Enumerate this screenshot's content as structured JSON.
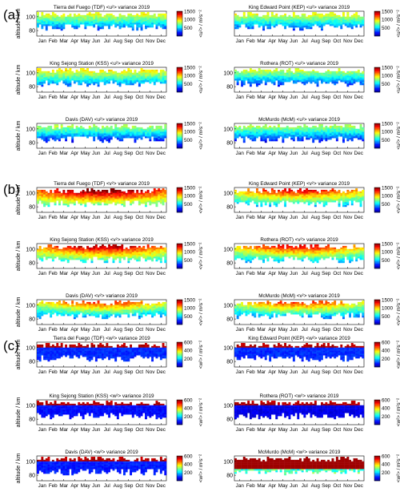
{
  "figure": {
    "groups": [
      {
        "label": "(a)",
        "symbol": "u"
      },
      {
        "label": "(b)",
        "symbol": "v"
      },
      {
        "label": "(c)",
        "symbol": "w"
      }
    ]
  },
  "chart_data": [
    {
      "type": "heatmap",
      "group": "(a)",
      "title": "Tierra del Fuego (TDF) <u²> variance 2019",
      "ylabel": "altitude / km",
      "yticks": [
        "80",
        "100"
      ],
      "ylim": [
        72,
        108
      ],
      "xticks": [
        "Jan",
        "Feb",
        "Mar",
        "Apr",
        "May",
        "Jun",
        "Jul",
        "Aug",
        "Sep",
        "Oct",
        "Nov",
        "Dec"
      ],
      "colorbar": {
        "ticks": [
          "500",
          "1000",
          "1500"
        ],
        "label": "<u²> / m²s⁻²",
        "range": [
          0,
          1500
        ]
      },
      "base_level": 750
    },
    {
      "type": "heatmap",
      "group": "(a)",
      "title": "King Edward Point (KEP) <u²> variance 2019",
      "ylabel": "",
      "yticks": [],
      "ylim": [
        72,
        108
      ],
      "xticks": [
        "Jan",
        "Feb",
        "Mar",
        "Apr",
        "May",
        "Jun",
        "Jul",
        "Aug",
        "Sep",
        "Oct",
        "Nov",
        "Dec"
      ],
      "colorbar": {
        "ticks": [
          "500",
          "1000",
          "1500"
        ],
        "label": "<u²> / m²s⁻²",
        "range": [
          0,
          1500
        ]
      },
      "base_level": 750
    },
    {
      "type": "heatmap",
      "group": "(a)",
      "title": "King Sejong Station (KSS) <u²> variance 2019",
      "ylabel": "altitude / km",
      "yticks": [
        "80",
        "100"
      ],
      "ylim": [
        72,
        108
      ],
      "xticks": [
        "Jan",
        "Feb",
        "Mar",
        "Apr",
        "May",
        "Jun",
        "Jul",
        "Aug",
        "Sep",
        "Oct",
        "Nov",
        "Dec"
      ],
      "colorbar": {
        "ticks": [
          "500",
          "1000",
          "1500"
        ],
        "label": "<u²> / m²s⁻²",
        "range": [
          0,
          1500
        ]
      },
      "base_level": 800
    },
    {
      "type": "heatmap",
      "group": "(a)",
      "title": "Rothera (ROT) <u²> variance 2019",
      "ylabel": "",
      "yticks": [
        "80",
        "100"
      ],
      "ylim": [
        72,
        108
      ],
      "xticks": [
        "Jan",
        "Feb",
        "Mar",
        "Apr",
        "May",
        "Jun",
        "Jul",
        "Aug",
        "Sep",
        "Oct",
        "Nov",
        "Dec"
      ],
      "colorbar": {
        "ticks": [
          "500",
          "1000",
          "1500"
        ],
        "label": "<u²> / m²s⁻²",
        "range": [
          0,
          1500
        ]
      },
      "base_level": 700
    },
    {
      "type": "heatmap",
      "group": "(a)",
      "title": "Davis (DAV) <u²> variance 2019",
      "ylabel": "altitude / km",
      "yticks": [
        "80",
        "100"
      ],
      "ylim": [
        72,
        108
      ],
      "xticks": [
        "Jan",
        "Feb",
        "Mar",
        "Apr",
        "May",
        "Jun",
        "Jul",
        "Aug",
        "Sep",
        "Oct",
        "Nov",
        "Dec"
      ],
      "colorbar": {
        "ticks": [
          "500",
          "1000",
          "1500"
        ],
        "label": "<u²> / m²s⁻²",
        "range": [
          0,
          1500
        ]
      },
      "base_level": 650
    },
    {
      "type": "heatmap",
      "group": "(a)",
      "title": "McMurdo (McM) <u²> variance 2019",
      "ylabel": "",
      "yticks": [
        "80",
        "100"
      ],
      "ylim": [
        72,
        108
      ],
      "xticks": [
        "Jan",
        "Feb",
        "Mar",
        "Apr",
        "May",
        "Jun",
        "Jul",
        "Aug",
        "Sep",
        "Oct",
        "Nov",
        "Dec"
      ],
      "colorbar": {
        "ticks": [
          "500",
          "1000",
          "1500"
        ],
        "label": "<u²> / m²s⁻²",
        "range": [
          0,
          1500
        ]
      },
      "base_level": 650
    },
    {
      "type": "heatmap",
      "group": "(b)",
      "title": "Tierra del Fuego (TDF) <v²> variance 2019",
      "ylabel": "altitude / km",
      "yticks": [
        "80",
        "100"
      ],
      "ylim": [
        72,
        108
      ],
      "xticks": [
        "Jan",
        "Feb",
        "Mar",
        "Apr",
        "May",
        "Jun",
        "Jul",
        "Aug",
        "Sep",
        "Oct",
        "Nov",
        "Dec"
      ],
      "colorbar": {
        "ticks": [
          "500",
          "1000",
          "1500"
        ],
        "label": "<v²> / m²s⁻²",
        "range": [
          0,
          1500
        ]
      },
      "base_level": 1100
    },
    {
      "type": "heatmap",
      "group": "(b)",
      "title": "King Edward Point (KEP) <v²> variance 2019",
      "ylabel": "",
      "yticks": [
        "80",
        "100"
      ],
      "ylim": [
        72,
        108
      ],
      "xticks": [
        "Jan",
        "Feb",
        "Mar",
        "Apr",
        "May",
        "Jun",
        "Jul",
        "Aug",
        "Sep",
        "Oct",
        "Nov",
        "Dec"
      ],
      "colorbar": {
        "ticks": [
          "500",
          "1000",
          "1500"
        ],
        "label": "<v²> / m²s⁻²",
        "range": [
          0,
          1500
        ]
      },
      "base_level": 900
    },
    {
      "type": "heatmap",
      "group": "(b)",
      "title": "King Sejong Station (KSS) <v²> variance 2019",
      "ylabel": "altitude / km",
      "yticks": [
        "80",
        "100"
      ],
      "ylim": [
        72,
        108
      ],
      "xticks": [
        "Jan",
        "Feb",
        "Mar",
        "Apr",
        "May",
        "Jun",
        "Jul",
        "Aug",
        "Sep",
        "Oct",
        "Nov",
        "Dec"
      ],
      "colorbar": {
        "ticks": [
          "500",
          "1000",
          "1500"
        ],
        "label": "<v²> / m²s⁻²",
        "range": [
          0,
          1500
        ]
      },
      "base_level": 1000
    },
    {
      "type": "heatmap",
      "group": "(b)",
      "title": "Rothera (ROT) <v²> variance 2019",
      "ylabel": "",
      "yticks": [
        "80",
        "100"
      ],
      "ylim": [
        72,
        108
      ],
      "xticks": [
        "Jan",
        "Feb",
        "Mar",
        "Apr",
        "May",
        "Jun",
        "Jul",
        "Aug",
        "Sep",
        "Oct",
        "Nov",
        "Dec"
      ],
      "colorbar": {
        "ticks": [
          "500",
          "1000",
          "1500"
        ],
        "label": "<v²> / m²s⁻²",
        "range": [
          0,
          1500
        ]
      },
      "base_level": 900
    },
    {
      "type": "heatmap",
      "group": "(b)",
      "title": "Davis (DAV) <v²> variance 2019",
      "ylabel": "altitude / km",
      "yticks": [
        "80",
        "100"
      ],
      "ylim": [
        72,
        108
      ],
      "xticks": [
        "Jan",
        "Feb",
        "Mar",
        "Apr",
        "May",
        "Jun",
        "Jul",
        "Aug",
        "Sep",
        "Oct",
        "Nov",
        "Dec"
      ],
      "colorbar": {
        "ticks": [
          "500",
          "1000",
          "1500"
        ],
        "label": "<v²> / m²s⁻²",
        "range": [
          0,
          1500
        ]
      },
      "base_level": 800
    },
    {
      "type": "heatmap",
      "group": "(b)",
      "title": "McMurdo (McM) <v²> variance 2019",
      "ylabel": "",
      "yticks": [
        "80",
        "100"
      ],
      "ylim": [
        72,
        108
      ],
      "xticks": [
        "Jan",
        "Feb",
        "Mar",
        "Apr",
        "May",
        "Jun",
        "Jul",
        "Aug",
        "Sep",
        "Oct",
        "Nov",
        "Dec"
      ],
      "colorbar": {
        "ticks": [
          "500",
          "1000",
          "1500"
        ],
        "label": "<v²> / m²s⁻²",
        "range": [
          0,
          1500
        ]
      },
      "base_level": 800
    },
    {
      "type": "heatmap",
      "group": "(c)",
      "title": "Tierra del Fuego (TDF) <w²> variance 2019",
      "ylabel": "altitude / km",
      "yticks": [
        "80",
        "100"
      ],
      "ylim": [
        72,
        108
      ],
      "xticks": [
        "Jan",
        "Feb",
        "Mar",
        "Apr",
        "May",
        "Jun",
        "Jul",
        "Aug",
        "Sep",
        "Oct",
        "Nov",
        "Dec"
      ],
      "colorbar": {
        "ticks": [
          "200",
          "400",
          "600"
        ],
        "label": "<w²> / m²s⁻²",
        "range": [
          0,
          600
        ]
      },
      "base_level": 100
    },
    {
      "type": "heatmap",
      "group": "(c)",
      "title": "King Edward Point (KEP) <w²> variance 2019",
      "ylabel": "",
      "yticks": [
        "80",
        "100"
      ],
      "ylim": [
        72,
        108
      ],
      "xticks": [
        "Jan",
        "Feb",
        "Mar",
        "Apr",
        "May",
        "Jun",
        "Jul",
        "Aug",
        "Sep",
        "Oct",
        "Nov",
        "Dec"
      ],
      "colorbar": {
        "ticks": [
          "200",
          "400",
          "600"
        ],
        "label": "<w²> / m²s⁻²",
        "range": [
          0,
          600
        ]
      },
      "base_level": 100
    },
    {
      "type": "heatmap",
      "group": "(c)",
      "title": "King Sejong Station (KSS) <w²> variance 2019",
      "ylabel": "altitude / km",
      "yticks": [
        "80",
        "100"
      ],
      "ylim": [
        72,
        108
      ],
      "xticks": [
        "Jan",
        "Feb",
        "Mar",
        "Apr",
        "May",
        "Jun",
        "Jul",
        "Aug",
        "Sep",
        "Oct",
        "Nov",
        "Dec"
      ],
      "colorbar": {
        "ticks": [
          "200",
          "400",
          "600"
        ],
        "label": "<w²> / m²s⁻²",
        "range": [
          0,
          600
        ]
      },
      "base_level": 80
    },
    {
      "type": "heatmap",
      "group": "(c)",
      "title": "Rothera (ROT) <w²> variance 2019",
      "ylabel": "",
      "yticks": [
        "80",
        "100"
      ],
      "ylim": [
        72,
        108
      ],
      "xticks": [
        "Jan",
        "Feb",
        "Mar",
        "Apr",
        "May",
        "Jun",
        "Jul",
        "Aug",
        "Sep",
        "Oct",
        "Nov",
        "Dec"
      ],
      "colorbar": {
        "ticks": [
          "200",
          "400",
          "600"
        ],
        "label": "<w²> / m²s⁻²",
        "range": [
          0,
          600
        ]
      },
      "base_level": 60
    },
    {
      "type": "heatmap",
      "group": "(c)",
      "title": "Davis (DAV) <w²> variance 2019",
      "ylabel": "altitude / km",
      "yticks": [
        "80",
        "100"
      ],
      "ylim": [
        72,
        108
      ],
      "xticks": [
        "Jan",
        "Feb",
        "Mar",
        "Apr",
        "May",
        "Jun",
        "Jul",
        "Aug",
        "Sep",
        "Oct",
        "Nov",
        "Dec"
      ],
      "colorbar": {
        "ticks": [
          "200",
          "400",
          "600"
        ],
        "label": "<w²> / m²s⁻²",
        "range": [
          0,
          600
        ]
      },
      "base_level": 90
    },
    {
      "type": "heatmap",
      "group": "(c)",
      "title": "McMurdo (McM) <w²> variance 2019",
      "ylabel": "",
      "yticks": [
        "80",
        "100"
      ],
      "ylim": [
        72,
        108
      ],
      "xticks": [
        "Jan",
        "Feb",
        "Mar",
        "Apr",
        "May",
        "Jun",
        "Jul",
        "Aug",
        "Sep",
        "Oct",
        "Nov",
        "Dec"
      ],
      "colorbar": {
        "ticks": [
          "200",
          "400",
          "600"
        ],
        "label": "<w²> / m²s⁻²",
        "range": [
          0,
          600
        ]
      },
      "base_level": 250
    }
  ]
}
